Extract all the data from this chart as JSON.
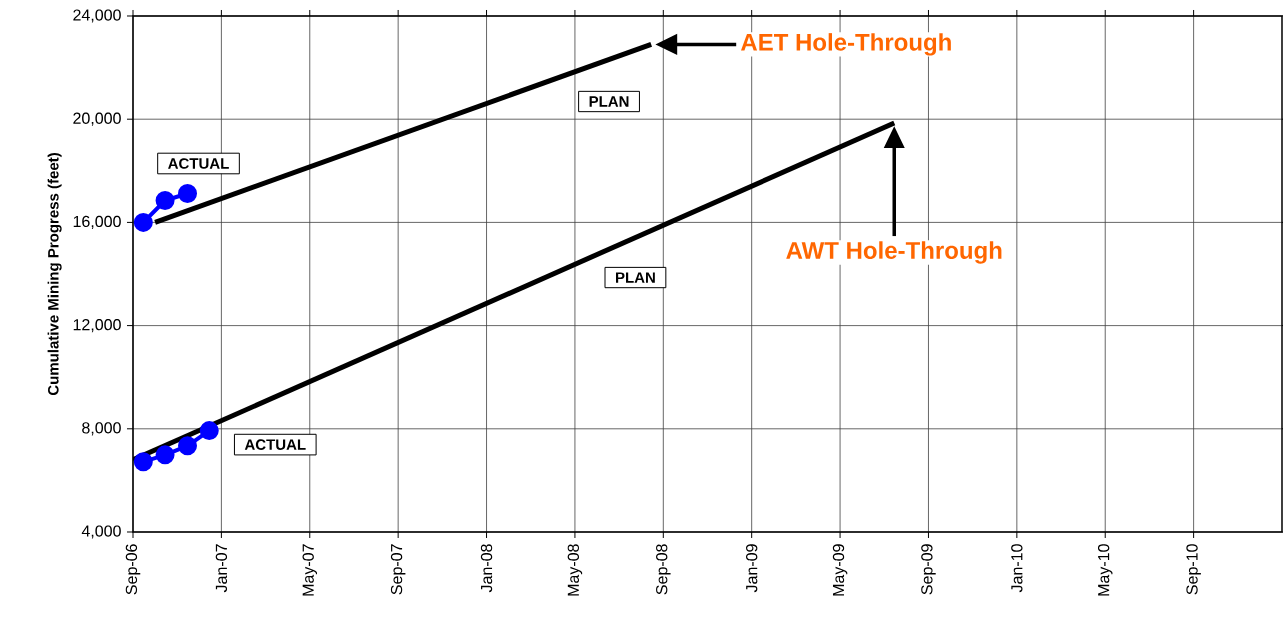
{
  "chart_data": {
    "type": "line",
    "ylabel": "Cumulative Mining Progress (feet)",
    "xlim": [
      "2006-09-01",
      "2011-01-01"
    ],
    "ylim": [
      4000,
      24000
    ],
    "xticks": [
      {
        "value": "2006-09-01",
        "label": "Sep-06"
      },
      {
        "value": "2007-01-01",
        "label": "Jan-07"
      },
      {
        "value": "2007-05-01",
        "label": "May-07"
      },
      {
        "value": "2007-09-01",
        "label": "Sep-07"
      },
      {
        "value": "2008-01-01",
        "label": "Jan-08"
      },
      {
        "value": "2008-05-01",
        "label": "May-08"
      },
      {
        "value": "2008-09-01",
        "label": "Sep-08"
      },
      {
        "value": "2009-01-01",
        "label": "Jan-09"
      },
      {
        "value": "2009-05-01",
        "label": "May-09"
      },
      {
        "value": "2009-09-01",
        "label": "Sep-09"
      },
      {
        "value": "2010-01-01",
        "label": "Jan-10"
      },
      {
        "value": "2010-05-01",
        "label": "May-10"
      },
      {
        "value": "2010-09-01",
        "label": "Sep-10"
      }
    ],
    "yticks": [
      {
        "value": 4000,
        "label": "4,000"
      },
      {
        "value": 8000,
        "label": "8,000"
      },
      {
        "value": 12000,
        "label": "12,000"
      },
      {
        "value": 16000,
        "label": "16,000"
      },
      {
        "value": 20000,
        "label": "20,000"
      },
      {
        "value": 24000,
        "label": "24,000"
      }
    ],
    "grid": true,
    "series": [
      {
        "name": "PLAN",
        "color": "#000000",
        "marker": "none",
        "x": [
          "2006-10-01",
          "2008-08-15"
        ],
        "values": [
          16000,
          22900
        ]
      },
      {
        "name": "ACTUAL",
        "color": "#0000ff",
        "marker": "circle",
        "x": [
          "2006-09-15",
          "2006-10-15",
          "2006-11-15"
        ],
        "values": [
          16000,
          16850,
          17120
        ]
      },
      {
        "name": "PLAN",
        "color": "#000000",
        "marker": "none",
        "x": [
          "2006-09-01",
          "2009-07-15"
        ],
        "values": [
          6800,
          19850
        ]
      },
      {
        "name": "ACTUAL",
        "color": "#0000ff",
        "marker": "circle",
        "x": [
          "2006-09-15",
          "2006-10-15",
          "2006-11-15",
          "2006-12-15"
        ],
        "values": [
          6720,
          6990,
          7340,
          7930
        ]
      }
    ],
    "annotations": [
      "AET Hole-Through",
      "AWT Hole-Through"
    ]
  }
}
